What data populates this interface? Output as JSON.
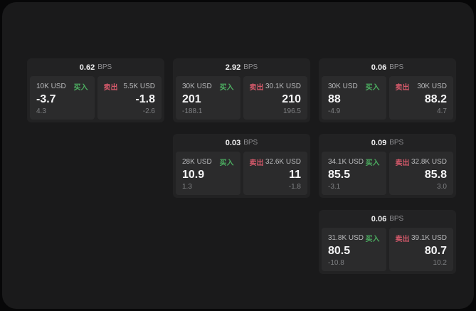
{
  "labels": {
    "buy": "买入",
    "sell": "卖出",
    "bps_unit": "BPS"
  },
  "colors": {
    "buy": "#4cae61",
    "sell": "#d4596a",
    "card_bg": "#222223",
    "panel_bg": "#2b2b2c",
    "surface_bg": "#1a1a1b"
  },
  "cards": [
    {
      "bps": "0.62",
      "buy": {
        "amount": "10K USD",
        "value": "-3.7",
        "sub": "4.3"
      },
      "sell": {
        "amount": "5.5K USD",
        "value": "-1.8",
        "sub": "-2.6"
      }
    },
    {
      "bps": "2.92",
      "buy": {
        "amount": "30K USD",
        "value": "201",
        "sub": "-188.1"
      },
      "sell": {
        "amount": "30.1K USD",
        "value": "210",
        "sub": "196.5"
      }
    },
    {
      "bps": "0.06",
      "buy": {
        "amount": "30K USD",
        "value": "88",
        "sub": "-4.9"
      },
      "sell": {
        "amount": "30K USD",
        "value": "88.2",
        "sub": "4.7"
      }
    },
    {
      "bps": "0.03",
      "buy": {
        "amount": "28K USD",
        "value": "10.9",
        "sub": "1.3"
      },
      "sell": {
        "amount": "32.6K USD",
        "value": "11",
        "sub": "-1.8"
      }
    },
    {
      "bps": "0.09",
      "buy": {
        "amount": "34.1K USD",
        "value": "85.5",
        "sub": "-3.1"
      },
      "sell": {
        "amount": "32.8K USD",
        "value": "85.8",
        "sub": "3.0"
      }
    },
    {
      "bps": "0.06",
      "buy": {
        "amount": "31.8K USD",
        "value": "80.5",
        "sub": "-10.8"
      },
      "sell": {
        "amount": "39.1K USD",
        "value": "80.7",
        "sub": "10.2"
      }
    }
  ]
}
